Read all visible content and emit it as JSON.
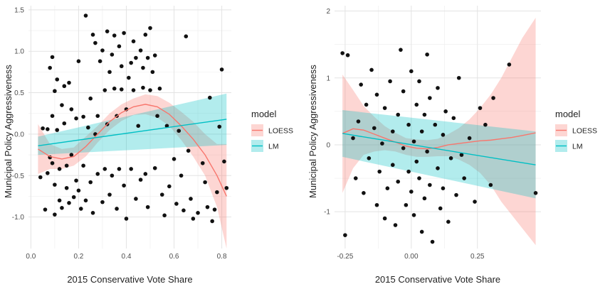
{
  "chart_data": [
    {
      "type": "scatter",
      "xlabel": "2015 Conservative Vote Share",
      "ylabel": "Municipal Policy Aggressiveness",
      "xlim": [
        -0.01,
        0.84
      ],
      "ylim": [
        -1.38,
        1.55
      ],
      "xticks": [
        0.0,
        0.2,
        0.4,
        0.6,
        0.8
      ],
      "xtick_labels": [
        "0.0",
        "0.2",
        "0.4",
        "0.6",
        "0.8"
      ],
      "yticks": [
        -1.0,
        -0.5,
        0.0,
        0.5,
        1.0,
        1.5
      ],
      "ytick_labels": [
        "-1.0",
        "-0.5",
        "0.0",
        "0.5",
        "1.0",
        "1.5"
      ],
      "grid": true,
      "legend": {
        "title": "model",
        "position": "right",
        "entries": [
          {
            "label": "LOESS",
            "color": "#F8766D"
          },
          {
            "label": "LM",
            "color": "#00BFC4"
          }
        ]
      },
      "points": [
        [
          0.04,
          -0.52
        ],
        [
          0.05,
          0.07
        ],
        [
          0.06,
          -0.91
        ],
        [
          0.07,
          -0.47
        ],
        [
          0.07,
          0.06
        ],
        [
          0.08,
          0.8
        ],
        [
          0.08,
          -0.28
        ],
        [
          0.09,
          0.93
        ],
        [
          0.09,
          0.22
        ],
        [
          0.09,
          -0.35
        ],
        [
          0.1,
          0.52
        ],
        [
          0.1,
          -0.61
        ],
        [
          0.1,
          -0.97
        ],
        [
          0.11,
          0.66
        ],
        [
          0.11,
          0.05
        ],
        [
          0.12,
          -0.8
        ],
        [
          0.12,
          -0.42
        ],
        [
          0.13,
          0.35
        ],
        [
          0.13,
          -0.89
        ],
        [
          0.14,
          0.13
        ],
        [
          0.14,
          0.58
        ],
        [
          0.15,
          -0.65
        ],
        [
          0.15,
          -0.38
        ],
        [
          0.16,
          0.62
        ],
        [
          0.16,
          -0.83
        ],
        [
          0.17,
          -0.25
        ],
        [
          0.17,
          0.3
        ],
        [
          0.18,
          -0.76
        ],
        [
          0.19,
          -0.56
        ],
        [
          0.19,
          0.19
        ],
        [
          0.2,
          -0.68
        ],
        [
          0.2,
          0.88
        ],
        [
          0.21,
          -0.9
        ],
        [
          0.22,
          -0.38
        ],
        [
          0.22,
          0.21
        ],
        [
          0.23,
          1.43
        ],
        [
          0.23,
          -0.8
        ],
        [
          0.24,
          0.08
        ],
        [
          0.25,
          -0.58
        ],
        [
          0.25,
          0.43
        ],
        [
          0.26,
          1.2
        ],
        [
          0.26,
          -0.95
        ],
        [
          0.27,
          1.1
        ],
        [
          0.27,
          0.0
        ],
        [
          0.28,
          -0.48
        ],
        [
          0.28,
          0.22
        ],
        [
          0.29,
          0.88
        ],
        [
          0.3,
          -0.82
        ],
        [
          0.3,
          1.01
        ],
        [
          0.31,
          0.53
        ],
        [
          0.31,
          -0.42
        ],
        [
          0.32,
          1.24
        ],
        [
          0.32,
          0.12
        ],
        [
          0.33,
          -0.73
        ],
        [
          0.33,
          0.75
        ],
        [
          0.34,
          0.96
        ],
        [
          0.34,
          -0.5
        ],
        [
          0.35,
          1.19
        ],
        [
          0.35,
          0.55
        ],
        [
          0.36,
          -0.9
        ],
        [
          0.36,
          0.22
        ],
        [
          0.37,
          1.06
        ],
        [
          0.37,
          -0.42
        ],
        [
          0.38,
          0.82
        ],
        [
          0.38,
          0.54
        ],
        [
          0.39,
          -0.62
        ],
        [
          0.39,
          1.22
        ],
        [
          0.4,
          0.3
        ],
        [
          0.4,
          -1.02
        ],
        [
          0.41,
          0.68
        ],
        [
          0.42,
          0.86
        ],
        [
          0.42,
          -0.42
        ],
        [
          0.43,
          1.12
        ],
        [
          0.43,
          0.53
        ],
        [
          0.44,
          -0.78
        ],
        [
          0.44,
          0.92
        ],
        [
          0.45,
          0.1
        ],
        [
          0.46,
          1.01
        ],
        [
          0.46,
          -0.55
        ],
        [
          0.47,
          0.8
        ],
        [
          0.47,
          0.56
        ],
        [
          0.48,
          1.2
        ],
        [
          0.48,
          -0.48
        ],
        [
          0.49,
          0.92
        ],
        [
          0.49,
          -0.88
        ],
        [
          0.5,
          1.28
        ],
        [
          0.5,
          0.53
        ],
        [
          0.51,
          0.75
        ],
        [
          0.52,
          -0.41
        ],
        [
          0.52,
          0.95
        ],
        [
          0.53,
          0.22
        ],
        [
          0.54,
          0.55
        ],
        [
          0.55,
          -0.73
        ],
        [
          0.56,
          -0.98
        ],
        [
          0.57,
          0.1
        ],
        [
          0.58,
          -0.63
        ],
        [
          0.6,
          -0.3
        ],
        [
          0.61,
          -0.84
        ],
        [
          0.62,
          0.04
        ],
        [
          0.63,
          -0.5
        ],
        [
          0.64,
          -0.92
        ],
        [
          0.65,
          1.18
        ],
        [
          0.66,
          -0.2
        ],
        [
          0.67,
          -0.78
        ],
        [
          0.68,
          -1.02
        ],
        [
          0.7,
          -0.95
        ],
        [
          0.72,
          -0.35
        ],
        [
          0.73,
          -0.58
        ],
        [
          0.74,
          -0.88
        ],
        [
          0.75,
          0.44
        ],
        [
          0.76,
          -1.05
        ],
        [
          0.77,
          -0.91
        ],
        [
          0.78,
          -0.7
        ],
        [
          0.79,
          0.09
        ],
        [
          0.8,
          0.78
        ],
        [
          0.81,
          -0.33
        ],
        [
          0.82,
          -0.65
        ]
      ],
      "series": [
        {
          "name": "LOESS",
          "color": "#F8766D",
          "x": [
            0.03,
            0.08,
            0.13,
            0.18,
            0.23,
            0.28,
            0.33,
            0.38,
            0.43,
            0.48,
            0.53,
            0.58,
            0.63,
            0.68,
            0.73,
            0.78,
            0.82
          ],
          "y": [
            -0.18,
            -0.27,
            -0.3,
            -0.27,
            -0.15,
            0.0,
            0.15,
            0.26,
            0.33,
            0.36,
            0.33,
            0.24,
            0.1,
            -0.06,
            -0.25,
            -0.5,
            -0.75
          ],
          "ci_lower": [
            -0.48,
            -0.42,
            -0.42,
            -0.38,
            -0.27,
            -0.1,
            0.05,
            0.16,
            0.23,
            0.24,
            0.2,
            0.1,
            -0.07,
            -0.27,
            -0.5,
            -0.88,
            -1.38
          ],
          "ci_upper": [
            0.12,
            -0.12,
            -0.18,
            -0.16,
            -0.03,
            0.1,
            0.25,
            0.36,
            0.43,
            0.48,
            0.46,
            0.38,
            0.27,
            0.15,
            0.0,
            -0.12,
            -0.12
          ]
        },
        {
          "name": "LM",
          "color": "#00BFC4",
          "x": [
            0.03,
            0.82
          ],
          "y": [
            -0.14,
            0.18
          ],
          "ci_lower": [
            -0.25,
            -0.13
          ],
          "ci_upper": [
            -0.03,
            0.49
          ]
        }
      ]
    },
    {
      "type": "scatter",
      "xlabel": "2015 Conservative Vote Share",
      "ylabel": "Municipal Policy Aggressiveness",
      "xlim": [
        -0.29,
        0.49
      ],
      "ylim": [
        -1.55,
        2.08
      ],
      "xticks": [
        -0.25,
        0.0,
        0.25
      ],
      "xtick_labels": [
        "-0.25",
        "0.00",
        "0.25"
      ],
      "yticks": [
        -1,
        0,
        1,
        2
      ],
      "ytick_labels": [
        "-1",
        "0",
        "1",
        "2"
      ],
      "grid": true,
      "legend": {
        "title": "model",
        "position": "right",
        "entries": [
          {
            "label": "LOESS",
            "color": "#F8766D"
          },
          {
            "label": "LM",
            "color": "#00BFC4"
          }
        ]
      },
      "points": [
        [
          -0.26,
          1.37
        ],
        [
          -0.24,
          1.34
        ],
        [
          -0.25,
          -1.35
        ],
        [
          -0.22,
          0.1
        ],
        [
          -0.21,
          -0.5
        ],
        [
          -0.2,
          0.35
        ],
        [
          -0.19,
          0.9
        ],
        [
          -0.18,
          -0.72
        ],
        [
          -0.17,
          0.6
        ],
        [
          -0.16,
          -0.2
        ],
        [
          -0.15,
          1.12
        ],
        [
          -0.14,
          0.25
        ],
        [
          -0.13,
          -0.9
        ],
        [
          -0.13,
          0.75
        ],
        [
          -0.12,
          -0.4
        ],
        [
          -0.11,
          0.02
        ],
        [
          -0.1,
          -1.1
        ],
        [
          -0.1,
          0.55
        ],
        [
          -0.09,
          -0.65
        ],
        [
          -0.08,
          0.95
        ],
        [
          -0.07,
          -0.3
        ],
        [
          -0.07,
          0.2
        ],
        [
          -0.06,
          -1.2
        ],
        [
          -0.05,
          0.45
        ],
        [
          -0.05,
          -0.55
        ],
        [
          -0.04,
          1.42
        ],
        [
          -0.03,
          -0.05
        ],
        [
          -0.03,
          0.8
        ],
        [
          -0.02,
          -0.9
        ],
        [
          -0.01,
          0.3
        ],
        [
          -0.01,
          -0.4
        ],
        [
          0.0,
          1.1
        ],
        [
          0.0,
          -0.7
        ],
        [
          0.01,
          0.05
        ],
        [
          0.01,
          -1.05
        ],
        [
          0.02,
          0.6
        ],
        [
          0.02,
          -0.25
        ],
        [
          0.03,
          0.95
        ],
        [
          0.03,
          -0.5
        ],
        [
          0.04,
          0.2
        ],
        [
          0.04,
          -1.3
        ],
        [
          0.05,
          0.45
        ],
        [
          0.05,
          -0.8
        ],
        [
          0.06,
          1.35
        ],
        [
          0.06,
          -0.1
        ],
        [
          0.07,
          0.7
        ],
        [
          0.07,
          -0.6
        ],
        [
          0.08,
          -1.45
        ],
        [
          0.09,
          0.3
        ],
        [
          0.1,
          -0.35
        ],
        [
          0.1,
          0.85
        ],
        [
          0.11,
          -0.95
        ],
        [
          0.12,
          0.15
        ],
        [
          0.12,
          -0.65
        ],
        [
          0.13,
          0.5
        ],
        [
          0.14,
          -1.15
        ],
        [
          0.15,
          -0.2
        ],
        [
          0.16,
          0.4
        ],
        [
          0.17,
          -0.75
        ],
        [
          0.18,
          1.0
        ],
        [
          0.19,
          -0.15
        ],
        [
          0.2,
          -0.5
        ],
        [
          0.22,
          0.1
        ],
        [
          0.24,
          -0.85
        ],
        [
          0.26,
          0.55
        ],
        [
          0.28,
          0.3
        ],
        [
          0.3,
          -0.6
        ],
        [
          0.31,
          0.7
        ],
        [
          0.37,
          1.2
        ],
        [
          0.47,
          -0.72
        ]
      ],
      "series": [
        {
          "name": "LOESS",
          "color": "#F8766D",
          "x": [
            -0.26,
            -0.22,
            -0.18,
            -0.14,
            -0.1,
            -0.06,
            -0.02,
            0.02,
            0.06,
            0.1,
            0.14,
            0.18,
            0.22,
            0.26,
            0.3,
            0.34,
            0.38,
            0.42,
            0.47
          ],
          "y": [
            0.17,
            0.24,
            0.22,
            0.16,
            0.1,
            0.04,
            -0.02,
            -0.05,
            -0.06,
            -0.04,
            0.0,
            0.02,
            0.04,
            0.06,
            0.07,
            0.09,
            0.11,
            0.14,
            0.18
          ],
          "ci_lower": [
            -0.72,
            -0.35,
            -0.15,
            -0.1,
            -0.08,
            -0.1,
            -0.15,
            -0.18,
            -0.18,
            -0.17,
            -0.17,
            -0.22,
            -0.3,
            -0.42,
            -0.6,
            -0.85,
            -1.05,
            -1.25,
            -1.5
          ],
          "ci_upper": [
            1.05,
            0.82,
            0.58,
            0.42,
            0.28,
            0.18,
            0.1,
            0.08,
            0.07,
            0.09,
            0.16,
            0.25,
            0.38,
            0.55,
            0.75,
            1.0,
            1.3,
            1.6,
            1.9
          ]
        },
        {
          "name": "LM",
          "color": "#00BFC4",
          "x": [
            -0.26,
            0.47
          ],
          "y": [
            0.17,
            -0.3
          ],
          "ci_lower": [
            -0.18,
            -0.8
          ],
          "ci_upper": [
            0.52,
            0.2
          ]
        }
      ]
    }
  ]
}
